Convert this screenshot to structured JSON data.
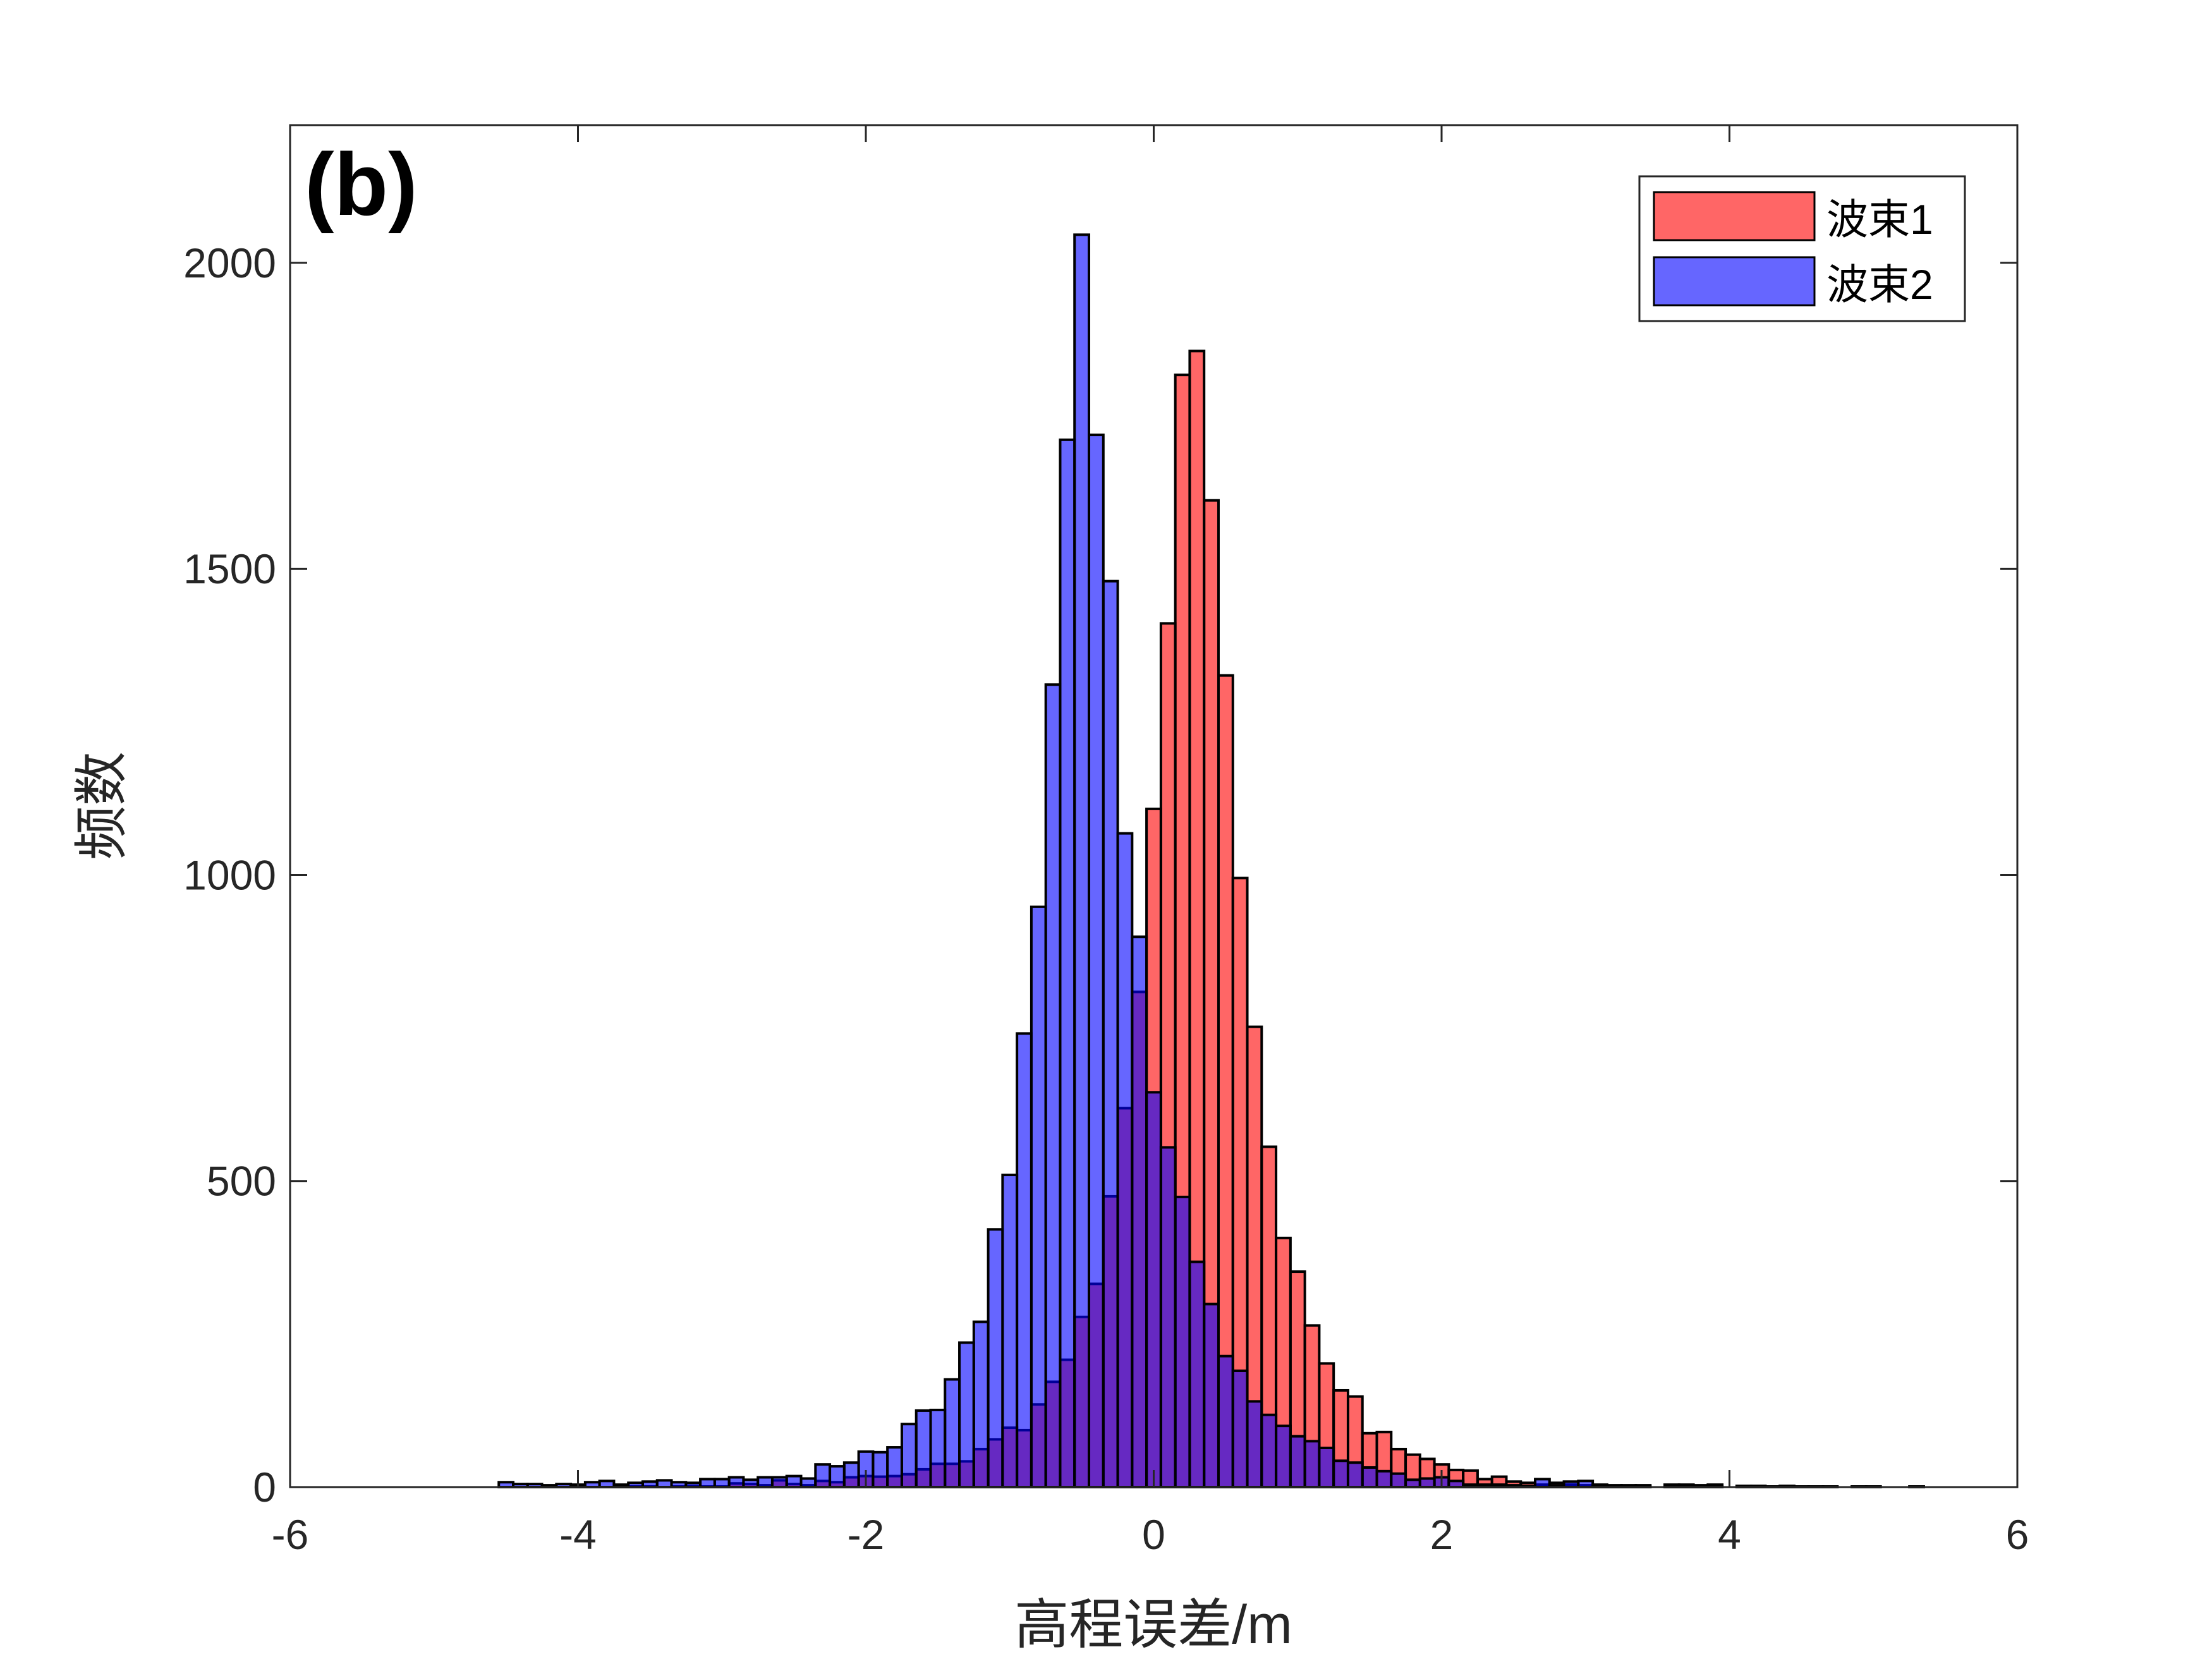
{
  "chart_data": {
    "type": "bar",
    "subtype": "overlapping-histogram",
    "panel_label": "(b)",
    "xlabel": "高程误差/m",
    "ylabel": "频数",
    "xlim": [
      -6,
      6
    ],
    "ylim": [
      0,
      2225
    ],
    "xticks": [
      -6,
      -4,
      -2,
      0,
      2,
      4,
      6
    ],
    "yticks": [
      0,
      500,
      1000,
      1500,
      2000
    ],
    "bin_width": 0.1,
    "grid": false,
    "legend_position": "top-right",
    "x": [
      -4.5,
      -4.4,
      -4.3,
      -4.2,
      -4.1,
      -4.0,
      -3.9,
      -3.8,
      -3.7,
      -3.6,
      -3.5,
      -3.4,
      -3.3,
      -3.2,
      -3.1,
      -3.0,
      -2.9,
      -2.8,
      -2.7,
      -2.6,
      -2.5,
      -2.4,
      -2.3,
      -2.2,
      -2.1,
      -2.0,
      -1.9,
      -1.8,
      -1.7,
      -1.6,
      -1.5,
      -1.4,
      -1.3,
      -1.2,
      -1.1,
      -1.0,
      -0.9,
      -0.8,
      -0.7,
      -0.6,
      -0.5,
      -0.4,
      -0.3,
      -0.2,
      -0.1,
      0.0,
      0.1,
      0.2,
      0.3,
      0.4,
      0.5,
      0.6,
      0.7,
      0.8,
      0.9,
      1.0,
      1.1,
      1.2,
      1.3,
      1.4,
      1.5,
      1.6,
      1.7,
      1.8,
      1.9,
      2.0,
      2.1,
      2.2,
      2.3,
      2.4,
      2.5,
      2.6,
      2.7,
      2.8,
      2.9,
      3.0,
      3.1,
      3.2,
      3.3,
      3.4,
      3.5,
      3.6,
      3.7,
      3.8,
      3.9,
      4.0,
      4.1,
      4.2,
      4.3,
      4.4,
      4.5,
      4.6,
      4.7,
      4.8,
      4.9,
      5.0,
      5.1,
      5.2,
      5.3
    ],
    "series": [
      {
        "name": "波束1",
        "color": "#FF6666",
        "values": [
          0,
          0,
          0,
          0,
          0,
          1,
          0,
          0,
          0,
          1,
          1,
          0,
          1,
          2,
          1,
          1,
          6,
          5,
          3,
          11,
          5,
          3,
          10,
          8,
          16,
          18,
          17,
          18,
          21,
          29,
          38,
          38,
          42,
          62,
          78,
          97,
          93,
          135,
          172,
          208,
          278,
          332,
          475,
          619,
          809,
          1108,
          1411,
          1817,
          1856,
          1612,
          1326,
          995,
          752,
          556,
          407,
          352,
          264,
          202,
          158,
          148,
          88,
          90,
          62,
          53,
          46,
          37,
          28,
          27,
          13,
          17,
          9,
          7,
          4,
          7,
          4,
          3,
          4,
          3,
          3,
          3,
          0,
          4,
          4,
          3,
          4,
          0,
          2,
          2,
          1,
          2,
          1,
          1,
          1,
          0,
          1,
          1,
          0,
          0,
          1
        ]
      },
      {
        "name": "波束2",
        "color": "#6666FF",
        "values": [
          8,
          5,
          5,
          3,
          5,
          4,
          8,
          10,
          4,
          7,
          9,
          11,
          8,
          7,
          13,
          13,
          16,
          12,
          16,
          16,
          18,
          14,
          37,
          34,
          40,
          58,
          57,
          65,
          103,
          125,
          126,
          176,
          236,
          270,
          421,
          510,
          741,
          948,
          1311,
          1711,
          2046,
          1719,
          1480,
          1068,
          899,
          645,
          555,
          474,
          368,
          299,
          214,
          190,
          140,
          118,
          100,
          83,
          75,
          64,
          43,
          40,
          32,
          26,
          22,
          12,
          14,
          16,
          10,
          4,
          4,
          4,
          3,
          2,
          13,
          3,
          9,
          10,
          2,
          1,
          1,
          1,
          0,
          1,
          1,
          0,
          1,
          0,
          0,
          0,
          0,
          0,
          0,
          0,
          0,
          0,
          0,
          0,
          0,
          0,
          0
        ]
      }
    ],
    "overlap_color": "#6629B3"
  }
}
